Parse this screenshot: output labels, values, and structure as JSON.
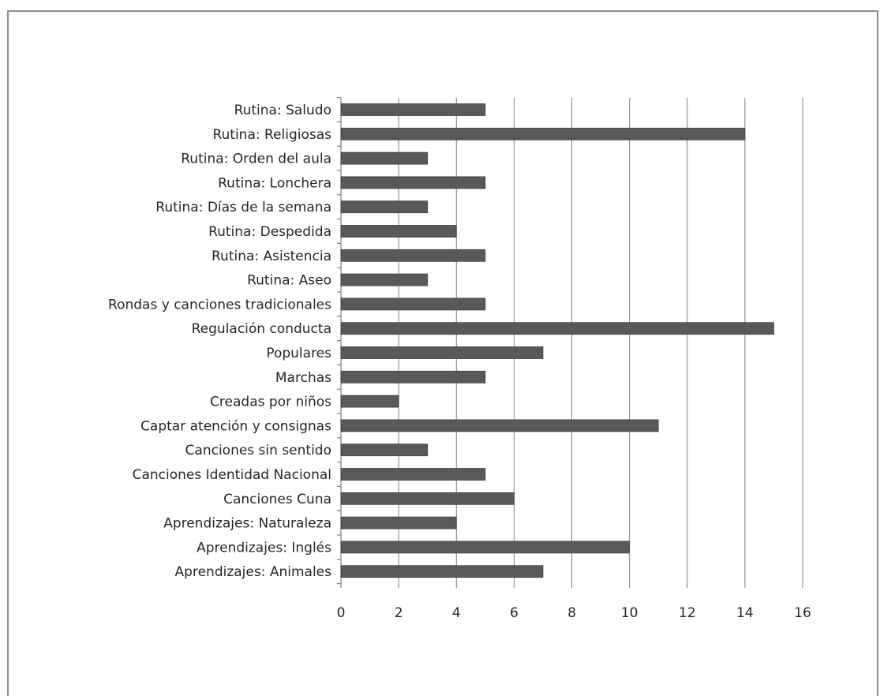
{
  "chart_data": {
    "type": "bar",
    "orientation": "horizontal",
    "title": "",
    "xlabel": "",
    "ylabel": "",
    "categories": [
      "Rutina: Saludo",
      "Rutina: Religiosas",
      "Rutina: Orden del aula",
      "Rutina: Lonchera",
      "Rutina: Días de la semana",
      "Rutina: Despedida",
      "Rutina: Asistencia",
      "Rutina: Aseo",
      "Rondas y canciones tradicionales",
      "Regulación conducta",
      "Populares",
      "Marchas",
      "Creadas por niños",
      "Captar atención y consignas",
      "Canciones sin sentido",
      "Canciones Identidad Nacional",
      "Canciones Cuna",
      "Aprendizajes: Naturaleza",
      "Aprendizajes: Inglés",
      "Aprendizajes: Animales"
    ],
    "values": [
      5,
      14,
      3,
      5,
      3,
      4,
      5,
      3,
      5,
      15,
      7,
      5,
      2,
      11,
      3,
      5,
      6,
      4,
      10,
      7
    ],
    "xlim": [
      0,
      16
    ],
    "xticks": [
      "0",
      "2",
      "4",
      "6",
      "8",
      "10",
      "12",
      "14",
      "16"
    ],
    "grid": true,
    "legend": "none",
    "bar_color": "#595959",
    "grid_color": "#7f7f7f"
  }
}
